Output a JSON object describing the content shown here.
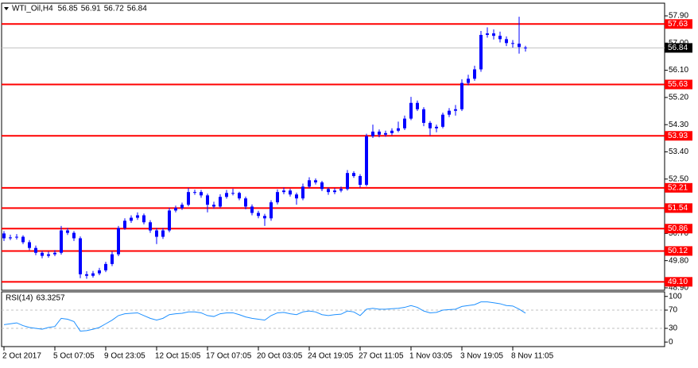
{
  "chart_data": {
    "type": "candlestick",
    "symbol": "WTI_Oil,H4",
    "color": "#0000ff",
    "categories": [
      "2 Oct 2017",
      null,
      null,
      null,
      null,
      null,
      null,
      null,
      "5 Oct 07:05",
      null,
      null,
      null,
      null,
      null,
      null,
      null,
      "9 Oct 23:05",
      null,
      null,
      null,
      null,
      null,
      null,
      null,
      "12 Oct 15:05",
      null,
      null,
      null,
      null,
      null,
      null,
      null,
      "17 Oct 07:05",
      null,
      null,
      null,
      null,
      null,
      null,
      null,
      "20 Oct 03:05",
      null,
      null,
      null,
      null,
      null,
      null,
      null,
      "24 Oct 19:05",
      null,
      null,
      null,
      null,
      null,
      null,
      null,
      "27 Oct 11:05",
      null,
      null,
      null,
      null,
      null,
      null,
      null,
      "1 Nov 03:05",
      null,
      null,
      null,
      null,
      null,
      null,
      null,
      "3 Nov 19:05",
      null,
      null,
      null,
      null,
      null,
      null,
      null,
      "8 Nov 11:05",
      null,
      null
    ],
    "open": [
      50.7,
      50.54,
      50.57,
      50.59,
      50.41,
      50.22,
      50.06,
      49.96,
      50.01,
      50.06,
      50.8,
      50.72,
      50.54,
      49.35,
      49.3,
      49.38,
      49.48,
      49.69,
      50.01,
      50.88,
      51.12,
      51.22,
      51.3,
      51.07,
      50.8,
      50.59,
      50.8,
      51.46,
      51.54,
      51.65,
      52.07,
      52.07,
      51.96,
      51.65,
      51.59,
      51.91,
      52.04,
      52.04,
      51.86,
      51.59,
      51.38,
      51.28,
      51.2,
      51.73,
      52.07,
      52.12,
      51.99,
      51.86,
      52.25,
      52.46,
      52.39,
      52.17,
      52.07,
      52.12,
      52.17,
      52.7,
      52.6,
      52.31,
      53.92,
      54.07,
      53.97,
      54.02,
      54.1,
      54.18,
      54.5,
      55.02,
      54.81,
      54.36,
      54.18,
      54.23,
      54.63,
      54.76,
      54.81,
      55.68,
      55.82,
      56.13,
      57.27,
      57.32,
      57.24,
      57.13,
      57.0,
      56.98,
      56.85
    ],
    "high": [
      50.78,
      50.66,
      50.68,
      50.64,
      50.48,
      50.3,
      50.12,
      50.1,
      50.15,
      50.95,
      50.88,
      50.78,
      50.6,
      49.45,
      49.46,
      49.56,
      49.76,
      50.1,
      50.95,
      51.2,
      51.3,
      51.4,
      51.36,
      51.14,
      50.88,
      50.88,
      51.55,
      51.62,
      51.72,
      52.2,
      52.15,
      52.14,
      52.02,
      51.75,
      52.0,
      52.14,
      52.18,
      52.08,
      51.92,
      51.66,
      51.45,
      51.35,
      51.8,
      52.16,
      52.22,
      52.18,
      52.05,
      52.35,
      52.56,
      52.52,
      52.44,
      52.22,
      52.2,
      52.25,
      52.8,
      52.76,
      52.66,
      54.0,
      54.3,
      54.14,
      54.1,
      54.18,
      54.4,
      54.6,
      55.22,
      55.1,
      54.88,
      54.42,
      54.3,
      54.7,
      54.85,
      54.95,
      55.8,
      55.95,
      56.25,
      57.4,
      57.52,
      57.45,
      57.38,
      57.22,
      57.1,
      57.87,
      56.91
    ],
    "low": [
      50.45,
      50.48,
      50.5,
      50.35,
      50.15,
      49.98,
      49.88,
      49.9,
      49.95,
      50.0,
      50.65,
      50.45,
      49.22,
      49.2,
      49.24,
      49.32,
      49.42,
      49.62,
      49.95,
      50.82,
      51.05,
      51.15,
      51.0,
      50.72,
      50.35,
      50.52,
      50.74,
      51.4,
      51.48,
      51.6,
      51.98,
      51.88,
      51.4,
      51.52,
      51.55,
      51.85,
      51.96,
      51.8,
      51.5,
      51.3,
      51.2,
      50.95,
      51.12,
      51.66,
      52.0,
      51.92,
      51.65,
      51.8,
      52.2,
      52.32,
      52.1,
      51.98,
      52.0,
      52.06,
      52.12,
      52.54,
      52.22,
      52.26,
      53.86,
      53.88,
      53.9,
      53.95,
      54.05,
      54.12,
      54.45,
      54.75,
      54.25,
      53.95,
      54.05,
      54.18,
      54.55,
      54.6,
      54.75,
      55.6,
      55.75,
      56.05,
      57.18,
      57.12,
      57.02,
      56.9,
      56.85,
      56.65,
      56.72
    ],
    "close": [
      50.54,
      50.57,
      50.59,
      50.41,
      50.22,
      50.06,
      49.96,
      50.01,
      50.06,
      50.8,
      50.72,
      50.54,
      49.35,
      49.3,
      49.38,
      49.48,
      49.69,
      50.01,
      50.88,
      51.12,
      51.22,
      51.3,
      51.07,
      50.8,
      50.59,
      50.8,
      51.46,
      51.54,
      51.65,
      52.07,
      52.07,
      51.96,
      51.65,
      51.59,
      51.91,
      52.04,
      52.04,
      51.86,
      51.59,
      51.38,
      51.28,
      51.2,
      51.73,
      52.07,
      52.12,
      51.99,
      51.86,
      52.25,
      52.46,
      52.39,
      52.17,
      52.07,
      52.12,
      52.17,
      52.7,
      52.6,
      52.31,
      53.92,
      54.07,
      53.97,
      54.02,
      54.1,
      54.18,
      54.5,
      55.02,
      54.81,
      54.36,
      54.18,
      54.23,
      54.63,
      54.76,
      54.81,
      55.68,
      55.82,
      56.13,
      57.27,
      57.32,
      57.24,
      57.13,
      57.0,
      56.98,
      56.87,
      56.84
    ],
    "ylim": [
      48.82,
      58.32
    ],
    "yticks": [
      {
        "value": 57.9,
        "label": "57.90"
      },
      {
        "value": 57.0,
        "label": "57.00"
      },
      {
        "value": 56.1,
        "label": "56.10"
      },
      {
        "value": 55.2,
        "label": "55.20"
      },
      {
        "value": 54.3,
        "label": "54.30"
      },
      {
        "value": 53.4,
        "label": "53.40"
      },
      {
        "value": 52.5,
        "label": "52.50"
      },
      {
        "value": 50.7,
        "label": "50.70"
      },
      {
        "value": 49.8,
        "label": "49.80"
      },
      {
        "value": 48.9,
        "label": "48.90"
      }
    ],
    "levels": [
      57.63,
      55.63,
      53.93,
      52.21,
      51.54,
      50.86,
      50.12,
      {
        "value": 49.1,
        "label": "49.10"
      }
    ],
    "level_color": "#ff0000",
    "rsi": {
      "label": "RSI(14)",
      "color": "#1e90ff",
      "values": [
        38,
        40,
        42,
        36,
        32,
        30,
        28,
        32,
        34,
        52,
        50,
        45,
        24,
        25,
        28,
        32,
        40,
        48,
        58,
        62,
        63,
        64,
        58,
        52,
        48,
        52,
        60,
        62,
        63,
        66,
        66,
        64,
        58,
        56,
        62,
        64,
        64,
        60,
        55,
        52,
        50,
        48,
        58,
        64,
        65,
        62,
        60,
        66,
        68,
        66,
        60,
        58,
        60,
        61,
        68,
        66,
        58,
        72,
        74,
        72,
        72,
        73,
        74,
        76,
        80,
        76,
        68,
        64,
        65,
        70,
        71,
        72,
        78,
        80,
        82,
        88,
        88,
        86,
        84,
        80,
        79,
        72,
        63.3257
      ],
      "ylim": [
        -10,
        110
      ],
      "yticks": [
        100,
        70,
        30,
        0
      ],
      "levels": [
        70,
        30
      ]
    }
  }
}
